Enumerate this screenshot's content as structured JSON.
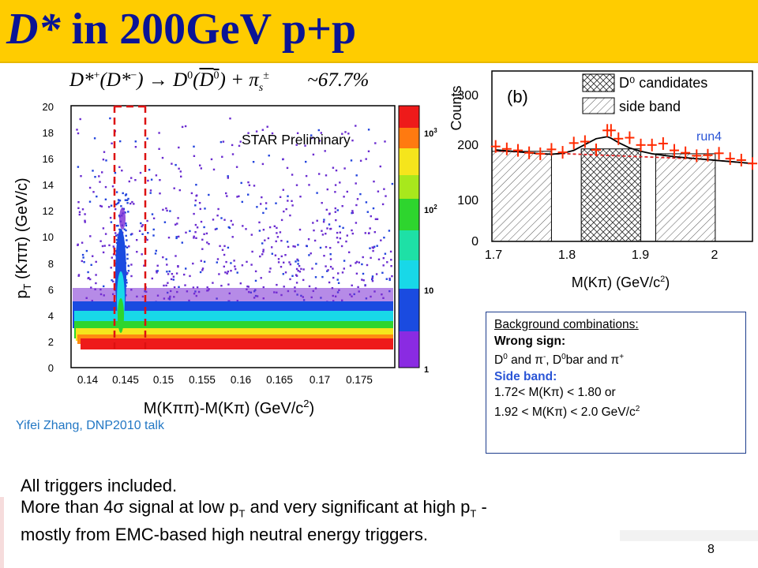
{
  "title": {
    "prefix": "D*",
    "rest": " in 200GeV p+p"
  },
  "decay": {
    "lhs": "D*",
    "lhs_plus": "+",
    "lhs_paren_minus": "−",
    "arrow": "→",
    "d0": "D",
    "d0_sup": "0",
    "pi": "π",
    "pi_sub": "s",
    "pi_sup": "±",
    "fraction": "~67.7%"
  },
  "left_plot": {
    "star_label": "STAR Preliminary",
    "ylabel": "p",
    "ylabel_sub": "T",
    "ylabel_rest": " (Kππ) (GeV/c)",
    "xlabel": "M(Kππ)-M(Kπ) (GeV/c",
    "xlabel_sup": "2",
    "xlabel_end": ")",
    "yticks": [
      "0",
      "2",
      "4",
      "6",
      "8",
      "10",
      "12",
      "14",
      "16",
      "18",
      "20"
    ],
    "xticks": [
      "0.14",
      "0.145",
      "0.15",
      "0.155",
      "0.16",
      "0.165",
      "0.17",
      "0.175"
    ],
    "colorbar_labels": {
      "k3": "10",
      "k3_sup": "3",
      "k2": "10",
      "k2_sup": "2",
      "k1": "10",
      "k0": "1"
    },
    "colors": {
      "cut_line": "#dd1111"
    }
  },
  "right_plot": {
    "panel_label": "(b)",
    "ylabel": "Counts",
    "xlabel": "M(Kπ) (GeV/c",
    "xlabel_sup": "2",
    "xlabel_end": ")",
    "legend": [
      "D⁰ candidates",
      "side band"
    ],
    "run_label": "run4",
    "yticks": [
      "0",
      "100",
      "200",
      "300"
    ],
    "xticks": [
      "1.7",
      "1.8",
      "1.9",
      "2"
    ]
  },
  "chart_data": {
    "type": "scatter",
    "x": [
      1.705,
      1.72,
      1.735,
      1.75,
      1.765,
      1.78,
      1.795,
      1.81,
      1.825,
      1.84,
      1.855,
      1.86,
      1.87,
      1.885,
      1.9,
      1.915,
      1.93,
      1.945,
      1.96,
      1.975,
      1.99,
      2.005,
      2.02,
      2.035,
      2.05
    ],
    "values": [
      195,
      190,
      187,
      182,
      180,
      189,
      183,
      202,
      205,
      188,
      228,
      228,
      211,
      213,
      198,
      198,
      201,
      187,
      182,
      176,
      177,
      181,
      170,
      167,
      160
    ],
    "fit_y": [
      188,
      186,
      184,
      182,
      180,
      179,
      181,
      187,
      199,
      211,
      215,
      212,
      203,
      192,
      185,
      180,
      177,
      174,
      172,
      170,
      168,
      166,
      164,
      162,
      160
    ],
    "xlabel": "M(Kπ) (GeV/c²)",
    "ylabel": "Counts",
    "ylim": [
      0,
      350
    ],
    "xlim": [
      1.7,
      2.05
    ]
  },
  "background_box": {
    "heading": "Background combinations:",
    "wrong_sign_label": "Wrong sign:",
    "wrong_sign_a": "D",
    "wrong_sign_sup1": "0",
    "wrong_sign_b": " and π",
    "wrong_sign_sup2": "-",
    "wrong_sign_c": ",  D",
    "wrong_sign_sup3": "0",
    "wrong_sign_d": "bar and π",
    "wrong_sign_sup4": "+",
    "side_band_label": "Side band:",
    "side_band_line1": "1.72< M(Kπ) < 1.80 or",
    "side_band_line2": "1.92 < M(Kπ) < 2.0 GeV/c",
    "side_band_sup": "2"
  },
  "credit": "Yifei Zhang, DNP2010 talk",
  "summary": {
    "line1": "All triggers included.",
    "line2a": "More than 4σ signal at low p",
    "line2_sub1": "T",
    "line2b": " and very significant at high p",
    "line2_sub2": "T",
    "line2c": " -",
    "line3": "mostly from EMC-based high neutral energy triggers."
  },
  "page_number": "8"
}
